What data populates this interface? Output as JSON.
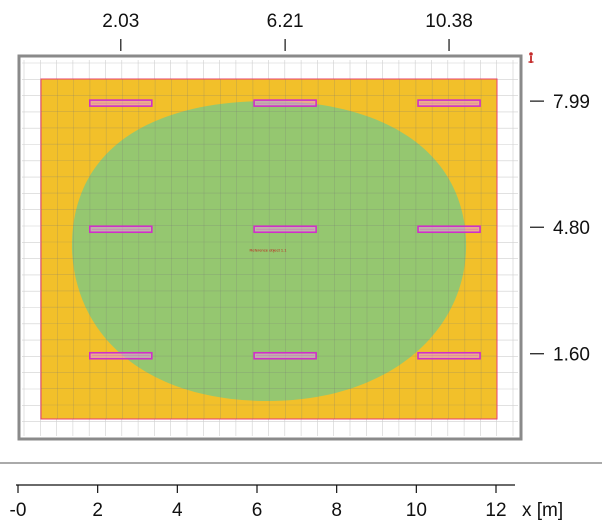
{
  "plan": {
    "top_ticks": [
      {
        "label": "2.03",
        "value": 2.03
      },
      {
        "label": "6.21",
        "value": 6.21
      },
      {
        "label": "10.38",
        "value": 10.38
      }
    ],
    "right_ticks": [
      {
        "label": "7.99",
        "value": 7.99
      },
      {
        "label": "4.80",
        "value": 4.8
      },
      {
        "label": "1.60",
        "value": 1.6
      }
    ],
    "x_axis": {
      "ticks": [
        "-0",
        "2",
        "4",
        "6",
        "8",
        "10",
        "12"
      ],
      "tick_values": [
        0,
        2,
        4,
        6,
        8,
        10,
        12
      ],
      "label": "x [m]"
    },
    "room": {
      "width_m": 11.6,
      "depth_m": 8.6
    },
    "luminaires": [
      {
        "x": 2.03,
        "y": 7.99
      },
      {
        "x": 6.21,
        "y": 7.99
      },
      {
        "x": 10.38,
        "y": 7.99
      },
      {
        "x": 2.03,
        "y": 4.8
      },
      {
        "x": 6.21,
        "y": 4.8
      },
      {
        "x": 10.38,
        "y": 4.8
      },
      {
        "x": 2.03,
        "y": 1.6
      },
      {
        "x": 6.21,
        "y": 1.6
      },
      {
        "x": 10.38,
        "y": 1.6
      }
    ],
    "reference_label": "Reference object 1.1",
    "colors": {
      "floor": "#f2c02a",
      "zone": "#8fc774",
      "outline": "#e8406e",
      "luminaire": "#d030c8",
      "frame": "#8a8a8a",
      "grid": "#cfcfcf"
    }
  }
}
